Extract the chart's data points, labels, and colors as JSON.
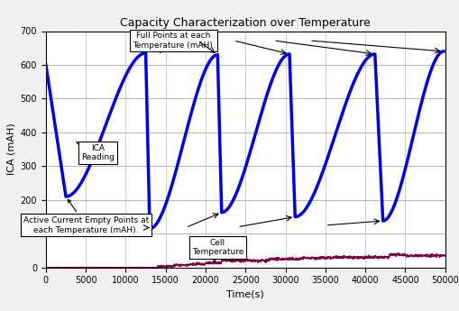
{
  "title": "Capacity Characterization over Temperature",
  "xlabel": "Time(s)",
  "ylabel": "ICA (mAH)",
  "xlim": [
    0,
    50000
  ],
  "ylim": [
    0,
    700
  ],
  "yticks": [
    0,
    100,
    200,
    300,
    400,
    500,
    600,
    700
  ],
  "xticks": [
    0,
    5000,
    10000,
    15000,
    20000,
    25000,
    30000,
    35000,
    40000,
    45000,
    50000
  ],
  "xtick_labels": [
    "0",
    "5000",
    "10000",
    "15000",
    "20000",
    "25000",
    "30000",
    "35000",
    "40000",
    "45000",
    "50000"
  ],
  "blue_color": "#0000EE",
  "temp_color": "#800040",
  "bg_color": "#F0F0F0",
  "plot_bg": "#FFFFFF",
  "grid_color": "#AAAAAA",
  "annotation_box_fc": "#FFFFFF",
  "annotation_box_ec": "#000000",
  "ann_fontsize": 6.5,
  "title_fontsize": 9,
  "label_fontsize": 8,
  "tick_fontsize": 7,
  "blue_lw": 2.5,
  "temp_lw": 1.0,
  "cycle_peaks": [
    635,
    630,
    632,
    632,
    640
  ],
  "cycle_bottoms": [
    210,
    115,
    163,
    150,
    138
  ],
  "cycle_peak_times": [
    12500,
    21500,
    30500,
    41200,
    49800
  ],
  "cycle_bottom_times": [
    2500,
    13000,
    22000,
    31200,
    42200
  ],
  "t_start": 0,
  "y_start": 600
}
